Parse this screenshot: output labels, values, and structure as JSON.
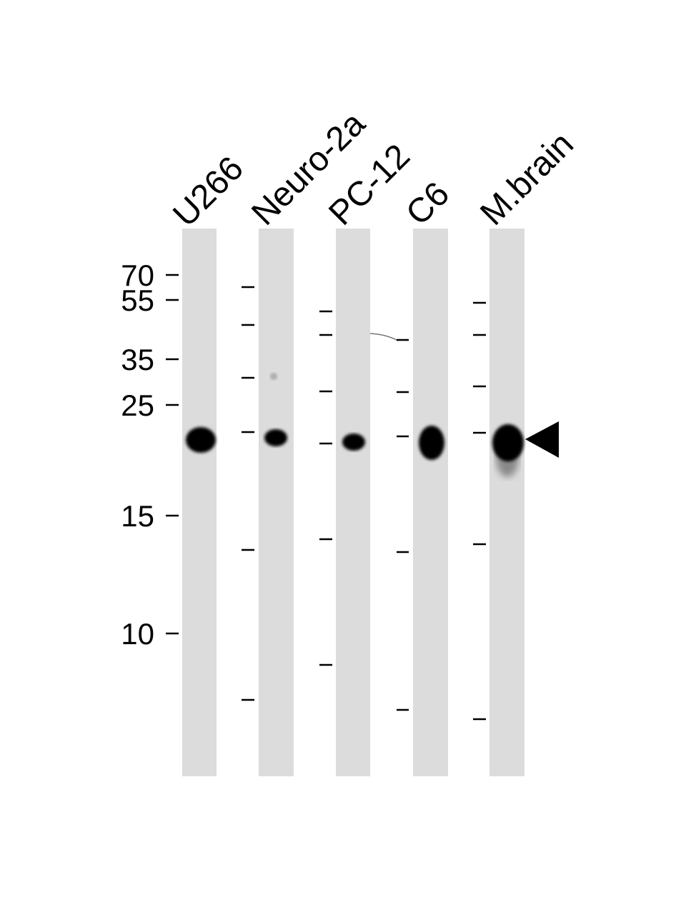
{
  "lanes": [
    {
      "label": "U266"
    },
    {
      "label": "Neuro-2a"
    },
    {
      "label": "PC-12"
    },
    {
      "label": "C6"
    },
    {
      "label": "M.brain"
    }
  ],
  "markers": [
    "70",
    "55",
    "35",
    "25",
    "15",
    "10"
  ],
  "colors": {
    "lane": "#dcdcdc",
    "band": "#000000"
  },
  "target_band_arrow": "arrow-left-icon"
}
